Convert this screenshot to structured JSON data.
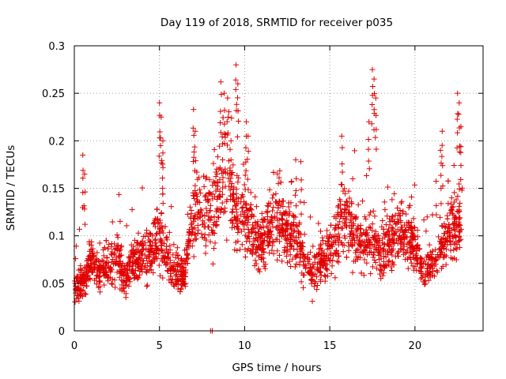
{
  "chart_data": {
    "type": "scatter",
    "title": "Day 119 of 2018, SRMTID for receiver p035",
    "xlabel": "GPS time / hours",
    "ylabel": "SRMTID / TECUs",
    "xlim": [
      0,
      24
    ],
    "ylim": [
      0,
      0.3
    ],
    "xticks": [
      0,
      5,
      10,
      15,
      20
    ],
    "xtick_labels": [
      "0",
      "5",
      "10",
      "15",
      "20"
    ],
    "yticks": [
      0,
      0.05,
      0.1,
      0.15,
      0.2,
      0.25,
      0.3
    ],
    "ytick_labels": [
      "0",
      "0.05",
      "0.1",
      "0.15",
      "0.2",
      "0.25",
      "0.3"
    ],
    "grid": true,
    "marker": "+",
    "color": "#e00000",
    "series": [
      {
        "name": "SRMTID",
        "trend": [
          [
            0.0,
            0.045
          ],
          [
            0.5,
            0.05
          ],
          [
            1.0,
            0.075
          ],
          [
            1.5,
            0.06
          ],
          [
            2.0,
            0.07
          ],
          [
            2.5,
            0.08
          ],
          [
            3.0,
            0.055
          ],
          [
            3.5,
            0.075
          ],
          [
            4.0,
            0.08
          ],
          [
            4.5,
            0.085
          ],
          [
            5.0,
            0.1
          ],
          [
            5.5,
            0.075
          ],
          [
            6.0,
            0.06
          ],
          [
            6.5,
            0.06
          ],
          [
            7.0,
            0.13
          ],
          [
            7.5,
            0.12
          ],
          [
            8.0,
            0.12
          ],
          [
            8.5,
            0.16
          ],
          [
            9.0,
            0.15
          ],
          [
            9.5,
            0.13
          ],
          [
            10.0,
            0.12
          ],
          [
            10.5,
            0.1
          ],
          [
            11.0,
            0.09
          ],
          [
            11.5,
            0.11
          ],
          [
            12.0,
            0.12
          ],
          [
            12.5,
            0.1
          ],
          [
            13.0,
            0.1
          ],
          [
            13.5,
            0.075
          ],
          [
            14.0,
            0.06
          ],
          [
            14.5,
            0.075
          ],
          [
            15.0,
            0.085
          ],
          [
            15.5,
            0.1
          ],
          [
            16.0,
            0.12
          ],
          [
            16.5,
            0.1
          ],
          [
            17.0,
            0.09
          ],
          [
            17.5,
            0.1
          ],
          [
            18.0,
            0.08
          ],
          [
            18.5,
            0.09
          ],
          [
            19.0,
            0.1
          ],
          [
            19.5,
            0.1
          ],
          [
            20.0,
            0.09
          ],
          [
            20.5,
            0.065
          ],
          [
            21.0,
            0.07
          ],
          [
            21.5,
            0.09
          ],
          [
            22.0,
            0.1
          ],
          [
            22.5,
            0.11
          ],
          [
            22.8,
            0.12
          ]
        ],
        "spikes": [
          [
            0.5,
            0.185
          ],
          [
            0.6,
            0.165
          ],
          [
            5.0,
            0.24
          ],
          [
            5.1,
            0.225
          ],
          [
            5.2,
            0.2
          ],
          [
            7.0,
            0.233
          ],
          [
            7.1,
            0.21
          ],
          [
            8.6,
            0.262
          ],
          [
            8.8,
            0.25
          ],
          [
            9.0,
            0.245
          ],
          [
            9.2,
            0.2
          ],
          [
            9.5,
            0.28
          ],
          [
            9.6,
            0.26
          ],
          [
            10.1,
            0.22
          ],
          [
            10.2,
            0.205
          ],
          [
            13.0,
            0.18
          ],
          [
            13.3,
            0.178
          ],
          [
            15.7,
            0.205
          ],
          [
            17.5,
            0.275
          ],
          [
            17.6,
            0.265
          ],
          [
            17.7,
            0.245
          ],
          [
            17.3,
            0.22
          ],
          [
            21.5,
            0.19
          ],
          [
            21.6,
            0.21
          ],
          [
            22.5,
            0.25
          ],
          [
            22.6,
            0.24
          ],
          [
            22.7,
            0.215
          ],
          [
            8.0,
            0.0
          ],
          [
            8.1,
            0.0
          ]
        ]
      }
    ]
  }
}
